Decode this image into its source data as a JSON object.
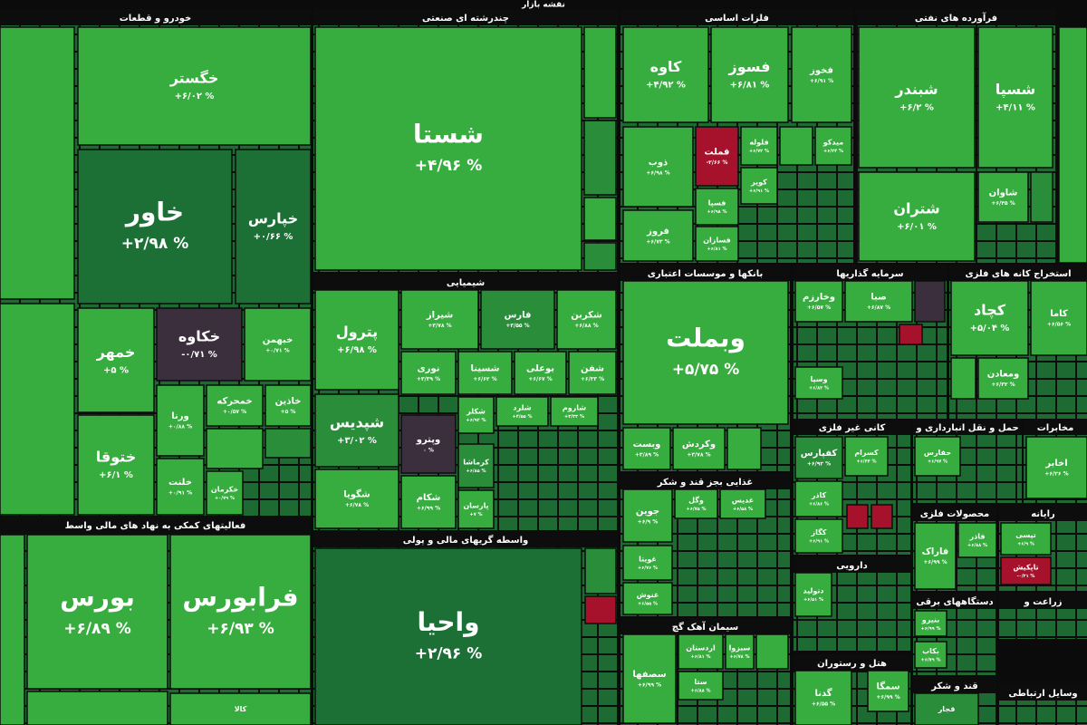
{
  "header": {
    "title": "نقشه بازار"
  },
  "sectors": [
    {
      "title": "خودرو و قطعات",
      "tiles": [
        {
          "label": "خگستر",
          "change": "+۶/۰۲ %"
        },
        {
          "label": "خاور",
          "change": "+۲/۹۸ %"
        },
        {
          "label": "خپارس",
          "change": "+۰/۶۶ %"
        },
        {
          "label": "خمهر",
          "change": "+۵ %"
        },
        {
          "label": "خکاوه",
          "change": "-۰/۷۱ %"
        },
        {
          "label": "خبهمن",
          "change": "+۰/۷۱ %"
        },
        {
          "label": "ختوقا",
          "change": "+۶/۱ %"
        },
        {
          "label": "ورنا",
          "change": "+۰/۸۸ %"
        },
        {
          "label": "خمحرکه",
          "change": "+۰/۵۷ %"
        },
        {
          "label": "خاذین",
          "change": "+۵ %"
        },
        {
          "label": "خلنت",
          "change": "+۰/۹۱ %"
        },
        {
          "label": "خکرمان",
          "change": "+۰/۷۹ %"
        }
      ]
    },
    {
      "title": "چندرشته ای صنعتی",
      "tiles": [
        {
          "label": "شستا",
          "change": "+۴/۹۶ %"
        }
      ]
    },
    {
      "title": "فلزات اساسی",
      "tiles": [
        {
          "label": "کاوه",
          "change": "+۴/۹۲ %"
        },
        {
          "label": "فسوز",
          "change": "+۶/۸۱ %"
        },
        {
          "label": "فخوز",
          "change": "+۶/۹۱ %"
        },
        {
          "label": "ذوب",
          "change": "+۶/۹۸ %"
        },
        {
          "label": "فملت",
          "change": "-۲/۶۶ %"
        },
        {
          "label": "فلوله",
          "change": "+۶/۷۲ %"
        },
        {
          "label": "میدکو",
          "change": "+۶/۲۴ %"
        },
        {
          "label": "فروز",
          "change": "+۶/۷۳ %"
        },
        {
          "label": "فسپا",
          "change": "+۶/۹۸ %"
        },
        {
          "label": "کویر",
          "change": "+۶/۹۱ %"
        },
        {
          "label": "فسازان",
          "change": "+۶/۸۱ %"
        }
      ]
    },
    {
      "title": "فرآورده های نفتی",
      "tiles": [
        {
          "label": "شبندر",
          "change": "+۶/۲ %"
        },
        {
          "label": "شسپا",
          "change": "+۴/۱۱ %"
        },
        {
          "label": "شتران",
          "change": "+۶/۰۱ %"
        },
        {
          "label": "شاوان",
          "change": "+۶/۴۵ %"
        }
      ]
    },
    {
      "title": "شیمیایی",
      "tiles": [
        {
          "label": "پترول",
          "change": "+۶/۹۸ %"
        },
        {
          "label": "شیراز",
          "change": "+۳/۷۸ %"
        },
        {
          "label": "فارس",
          "change": "+۳/۵۵ %"
        },
        {
          "label": "شکربن",
          "change": "+۶/۸۸ %"
        },
        {
          "label": "نوری",
          "change": "+۳/۳۹ %"
        },
        {
          "label": "شسینا",
          "change": "+۶/۶۲ %"
        },
        {
          "label": "بوعلی",
          "change": "+۶/۶۷ %"
        },
        {
          "label": "شفن",
          "change": "+۶/۳۳ %"
        },
        {
          "label": "شپدیس",
          "change": "+۳/۰۲ %"
        },
        {
          "label": "شکلر",
          "change": "+۶/۹۲ %"
        },
        {
          "label": "شلرد",
          "change": "+۴/۵۵ %"
        },
        {
          "label": "شاروم",
          "change": "+۳/۳۳ %"
        },
        {
          "label": "وپترو",
          "change": "۰ %"
        },
        {
          "label": "کرماشا",
          "change": "+۶/۸۵ %"
        },
        {
          "label": "شگویا",
          "change": "+۶/۷۸ %"
        },
        {
          "label": "شکام",
          "change": "+۶/۹۹ %"
        },
        {
          "label": "پارسان",
          "change": "+۷ %"
        }
      ]
    },
    {
      "title": "بانکها و موسسات اعتباری",
      "tiles": [
        {
          "label": "وبملت",
          "change": "+۵/۷۵ %"
        },
        {
          "label": "وبست",
          "change": "+۳/۸۹ %"
        },
        {
          "label": "وکردش",
          "change": "+۳/۷۸ %"
        }
      ]
    },
    {
      "title": "غذایی بجز قند و شکر",
      "tiles": [
        {
          "label": "جوین",
          "change": "+۶/۹ %"
        },
        {
          "label": "وگل",
          "change": "+۶/۷۵ %"
        },
        {
          "label": "غدیس",
          "change": "+۶/۵۸ %"
        },
        {
          "label": "غویتا",
          "change": "+۶/۷۶ %"
        },
        {
          "label": "غنوش",
          "change": "+۶/۵۵ %"
        }
      ]
    },
    {
      "title": "سیمان آهک گچ",
      "tiles": [
        {
          "label": "سصفها",
          "change": "+۶/۹۹ %"
        },
        {
          "label": "اردستان",
          "change": "+۶/۸۱ %"
        },
        {
          "label": "سبزوا",
          "change": "+۶/۷۸ %"
        },
        {
          "label": "ستا",
          "change": "+۶/۸۸ %"
        }
      ]
    },
    {
      "title": "فعالیتهای کمکی به نهاد های مالی واسط",
      "tiles": [
        {
          "label": "بورس",
          "change": "+۶/۸۹ %"
        },
        {
          "label": "فرابورس",
          "change": "+۶/۹۳ %"
        },
        {
          "label": "کالا"
        }
      ]
    },
    {
      "title": "واسطه گریهای مالی و پولی",
      "tiles": [
        {
          "label": "واحیا",
          "change": "+۲/۹۶ %"
        }
      ]
    },
    {
      "title": "سرمایه گذاریها",
      "tiles": [
        {
          "label": "وخارزم",
          "change": "+۶/۵۷ %"
        },
        {
          "label": "صبا",
          "change": "+۶/۸۷ %"
        },
        {
          "label": "وسپا",
          "change": "+۶/۸۳ %"
        }
      ]
    },
    {
      "title": "استخراج کانه های فلزی",
      "tiles": [
        {
          "label": "کچاد",
          "change": "+۵/۰۴ %"
        },
        {
          "label": "کاما",
          "change": "+۶/۵۶ %"
        },
        {
          "label": "ومعادن",
          "change": "+۶/۳۲ %"
        }
      ]
    },
    {
      "title": "کانی غیر فلزی",
      "tiles": [
        {
          "label": "کفپارس",
          "change": "+۶/۹۲ %"
        },
        {
          "label": "کسرام",
          "change": "+۶/۴۴ %"
        },
        {
          "label": "کاذر",
          "change": "+۶/۸۶ %"
        },
        {
          "label": "کگاز",
          "change": "+۶/۹۱ %"
        }
      ]
    },
    {
      "title": "حمل و نقل انبارداری و",
      "tiles": [
        {
          "label": "حفارس",
          "change": "+۶/۹۷ %"
        }
      ]
    },
    {
      "title": "مخابرات",
      "tiles": [
        {
          "label": "اخابر",
          "change": "+۶/۲۶ %"
        }
      ]
    },
    {
      "title": "محصولات فلزی",
      "tiles": [
        {
          "label": "فاذر",
          "change": "+۶/۸۸ %"
        },
        {
          "label": "فاراک",
          "change": "+۶/۹۹ %"
        }
      ]
    },
    {
      "title": "رایانه",
      "tiles": [
        {
          "label": "تپسی",
          "change": "+۶/۹ %"
        },
        {
          "label": "تاپکیش",
          "change": "-۰/۲۱ %"
        }
      ]
    },
    {
      "title": "دارویی",
      "tiles": [
        {
          "label": "دتولید",
          "change": "+۶/۵۱ %"
        }
      ]
    },
    {
      "title": "دستگاههای برقی",
      "tiles": [
        {
          "label": "بنیرو",
          "change": "+۶/۹۹ %"
        },
        {
          "label": "بکاب",
          "change": "+۶/۷۹ %"
        }
      ]
    },
    {
      "title": "زراعت و",
      "tiles": []
    },
    {
      "title": "هتل و رستوران",
      "tiles": [
        {
          "label": "گدنا",
          "change": "+۶/۵۵ %"
        },
        {
          "label": "سمگا",
          "change": "+۶/۹۹ %"
        }
      ]
    },
    {
      "title": "قند و شکر",
      "tiles": [
        {
          "label": "قجار"
        }
      ]
    },
    {
      "title": "وسایل ارتباطی",
      "tiles": []
    }
  ]
}
